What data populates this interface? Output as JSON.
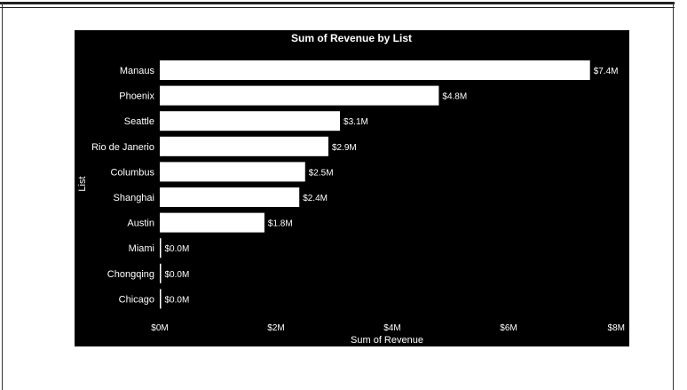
{
  "chart_data": {
    "type": "bar",
    "orientation": "horizontal",
    "title": "Sum of Revenue by List",
    "xlabel": "Sum of Revenue",
    "ylabel": "List",
    "categories": [
      "Manaus",
      "Phoenix",
      "Seattle",
      "Rio de Janerio",
      "Columbus",
      "Shanghai",
      "Austin",
      "Miami",
      "Chongqing",
      "Chicago"
    ],
    "values": [
      7.4,
      4.8,
      3.1,
      2.9,
      2.5,
      2.4,
      1.8,
      0.0,
      0.0,
      0.0
    ],
    "data_labels": [
      "$7.4M",
      "$4.8M",
      "$3.1M",
      "$2.9M",
      "$2.5M",
      "$2.4M",
      "$1.8M",
      "$0.0M",
      "$0.0M",
      "$0.0M"
    ],
    "xlim": [
      0,
      8
    ],
    "xticks": [
      0,
      2,
      4,
      6,
      8
    ],
    "xtick_labels": [
      "$0M",
      "$2M",
      "$4M",
      "$6M",
      "$8M"
    ],
    "grid": false,
    "legend": "none",
    "colors": {
      "background": "#000000",
      "bar": "#ffffff",
      "text": "#ffffff"
    }
  }
}
